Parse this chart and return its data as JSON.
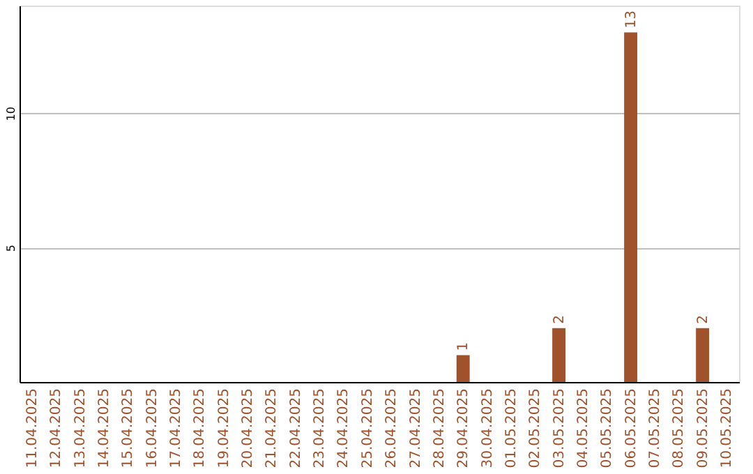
{
  "chart_data": {
    "type": "bar",
    "categories": [
      "11.04.2025",
      "12.04.2025",
      "13.04.2025",
      "14.04.2025",
      "15.04.2025",
      "16.04.2025",
      "17.04.2025",
      "18.04.2025",
      "19.04.2025",
      "20.04.2025",
      "21.04.2025",
      "22.04.2025",
      "23.04.2025",
      "24.04.2025",
      "25.04.2025",
      "26.04.2025",
      "27.04.2025",
      "28.04.2025",
      "29.04.2025",
      "30.04.2025",
      "01.05.2025",
      "02.05.2025",
      "03.05.2025",
      "04.05.2025",
      "05.05.2025",
      "06.05.2025",
      "07.05.2025",
      "08.05.2025",
      "09.05.2025",
      "10.05.2025"
    ],
    "values": [
      0,
      0,
      0,
      0,
      0,
      0,
      0,
      0,
      0,
      0,
      0,
      0,
      0,
      0,
      0,
      0,
      0,
      0,
      1,
      0,
      0,
      0,
      2,
      0,
      0,
      13,
      0,
      0,
      2,
      0
    ],
    "value_labels": [
      null,
      null,
      null,
      null,
      null,
      null,
      null,
      null,
      null,
      null,
      null,
      null,
      null,
      null,
      null,
      null,
      null,
      null,
      "1",
      null,
      null,
      null,
      "2",
      null,
      null,
      "13",
      null,
      null,
      "2",
      null
    ],
    "color": "#a0522d",
    "ylim": [
      0,
      14
    ],
    "yticks": [
      5,
      10
    ],
    "grid": "y"
  }
}
